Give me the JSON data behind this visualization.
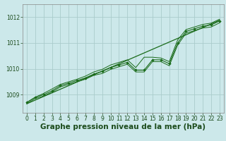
{
  "title": "Graphe pression niveau de la mer (hPa)",
  "bg_color": "#cce8ea",
  "grid_color": "#aacccc",
  "line_color": "#1a6b1a",
  "marker_color": "#1a6b1a",
  "text_color": "#1a4a1a",
  "xlim": [
    -0.5,
    23.5
  ],
  "ylim": [
    1008.3,
    1012.5
  ],
  "yticks": [
    1009,
    1010,
    1011,
    1012
  ],
  "xticks": [
    0,
    1,
    2,
    3,
    4,
    5,
    6,
    7,
    8,
    9,
    10,
    11,
    12,
    13,
    14,
    15,
    16,
    17,
    18,
    19,
    20,
    21,
    22,
    23
  ],
  "series_x": [
    0,
    1,
    2,
    3,
    4,
    5,
    6,
    7,
    8,
    9,
    10,
    11,
    12,
    13,
    14,
    15,
    16,
    17,
    18,
    19,
    20,
    21,
    22,
    23
  ],
  "series_main_y": [
    1008.7,
    1008.9,
    1009.0,
    1009.15,
    1009.35,
    1009.45,
    1009.55,
    1009.65,
    1009.8,
    1009.9,
    1010.05,
    1010.15,
    1010.25,
    1009.95,
    1009.95,
    1010.35,
    1010.35,
    1010.2,
    1011.0,
    1011.45,
    1011.55,
    1011.65,
    1011.7,
    1011.85
  ],
  "series_upper_y": [
    1008.7,
    1008.9,
    1009.05,
    1009.22,
    1009.4,
    1009.5,
    1009.6,
    1009.72,
    1009.88,
    1009.98,
    1010.15,
    1010.25,
    1010.35,
    1010.05,
    1010.45,
    1010.45,
    1010.42,
    1010.28,
    1011.12,
    1011.52,
    1011.62,
    1011.72,
    1011.77,
    1011.92
  ],
  "series_lower_y": [
    1008.65,
    1008.85,
    1008.95,
    1009.1,
    1009.3,
    1009.4,
    1009.5,
    1009.6,
    1009.75,
    1009.82,
    1009.98,
    1010.08,
    1010.18,
    1009.88,
    1009.88,
    1010.28,
    1010.28,
    1010.12,
    1010.92,
    1011.38,
    1011.48,
    1011.58,
    1011.62,
    1011.78
  ],
  "trend_x": [
    0,
    23
  ],
  "trend_y": [
    1008.65,
    1011.88
  ],
  "fontsize_label": 7.5,
  "fontsize_tick": 5.5
}
